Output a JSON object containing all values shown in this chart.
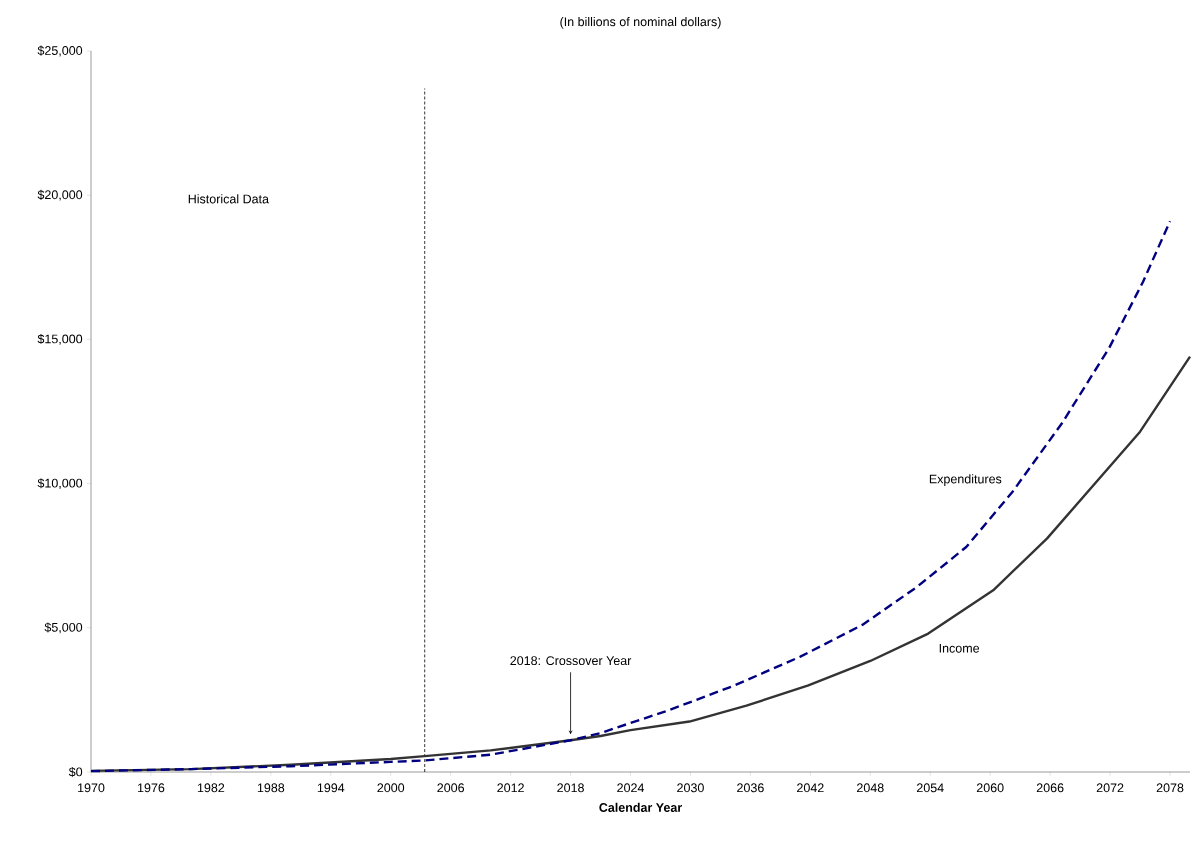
{
  "chart_data": {
    "type": "line",
    "title": "(In billions of nominal dollars)",
    "xlabel": "Calendar Year",
    "xlim": [
      1970,
      2080
    ],
    "xticks": [
      1970,
      1976,
      1982,
      1988,
      1994,
      2000,
      2006,
      2012,
      2018,
      2024,
      2030,
      2036,
      2042,
      2048,
      2054,
      2060,
      2066,
      2072,
      2078
    ],
    "ylim": [
      0,
      25000
    ],
    "yticks": [
      {
        "value": 0,
        "label": "$0"
      },
      {
        "value": 5000,
        "label": "$5,000"
      },
      {
        "value": 10000,
        "label": "$10,000"
      },
      {
        "value": 15000,
        "label": "$15,000"
      },
      {
        "value": 20000,
        "label": "$20,000"
      },
      {
        "value": 25000,
        "label": "$25,000"
      }
    ],
    "grid": false,
    "legend": false,
    "marker": "none",
    "series": [
      {
        "name": "Income",
        "color": "#333333",
        "line_style": "solid",
        "x": [
          1970,
          1980,
          1990,
          2000,
          2003.4,
          2010,
          2018,
          2021,
          2024,
          2029.9,
          2035.6,
          2041.8,
          2048,
          2053.8,
          2060.3,
          2065.7,
          2075,
          2080
        ],
        "values": [
          40,
          100,
          250,
          450,
          550,
          750,
          1100,
          1250,
          1450,
          1750,
          2300,
          3000,
          3850,
          4800,
          6300,
          8100,
          11800,
          14400
        ]
      },
      {
        "name": "Expenditures",
        "color": "#000080",
        "line_style": "dashed",
        "x": [
          1970,
          1980,
          1990,
          2000,
          2003.4,
          2010,
          2018,
          2021,
          2024,
          2027.5,
          2034.4,
          2041,
          2047.2,
          2052.6,
          2057.6,
          2062.2,
          2067.2,
          2071.9,
          2075.3,
          2078
        ],
        "values": [
          30,
          100,
          200,
          350,
          400,
          600,
          1100,
          1350,
          1700,
          2100,
          3000,
          4000,
          5100,
          6400,
          7800,
          9700,
          12100,
          14700,
          17000,
          19100
        ]
      }
    ],
    "ref_lines": [
      {
        "axis": "x",
        "value": 2003.4,
        "color": "#000000",
        "line_style": "dashed"
      }
    ],
    "annotations": [
      "Historical Data",
      {
        "text": "2018: Crossover Year",
        "x": 2018,
        "y": 1100
      }
    ]
  }
}
